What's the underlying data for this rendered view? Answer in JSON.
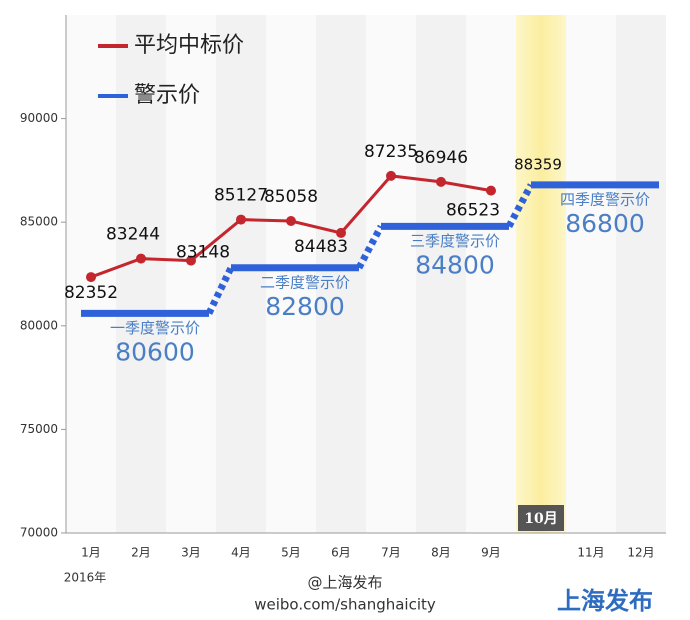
{
  "chart_data": {
    "type": "line",
    "categories": [
      "1月",
      "2月",
      "3月",
      "4月",
      "5月",
      "6月",
      "7月",
      "8月",
      "9月",
      "10月",
      "11月",
      "12月"
    ],
    "year_label": "2016年",
    "highlight": "10月",
    "series": [
      {
        "name": "平均中标价",
        "color": "#c4262e",
        "values": [
          82352,
          83244,
          83148,
          85127,
          85058,
          84483,
          87235,
          86946,
          86523,
          null,
          null,
          null
        ]
      },
      {
        "name": "警示价",
        "color": "#2f62d9",
        "step": true,
        "values": [
          80600,
          80600,
          80600,
          82800,
          82800,
          82800,
          84800,
          84800,
          84800,
          86800,
          86800,
          86800
        ],
        "quarter_labels": [
          "一季度警示价",
          "二季度警示价",
          "三季度警示价",
          "四季度警示价"
        ]
      }
    ],
    "annotation": "88359",
    "ylim": [
      70000,
      95000
    ],
    "yticks": [
      70000,
      75000,
      80000,
      85000,
      90000
    ],
    "footer": {
      "account": "@上海发布",
      "url": "weibo.com/shanghaicity",
      "logo": "上海发布"
    }
  }
}
